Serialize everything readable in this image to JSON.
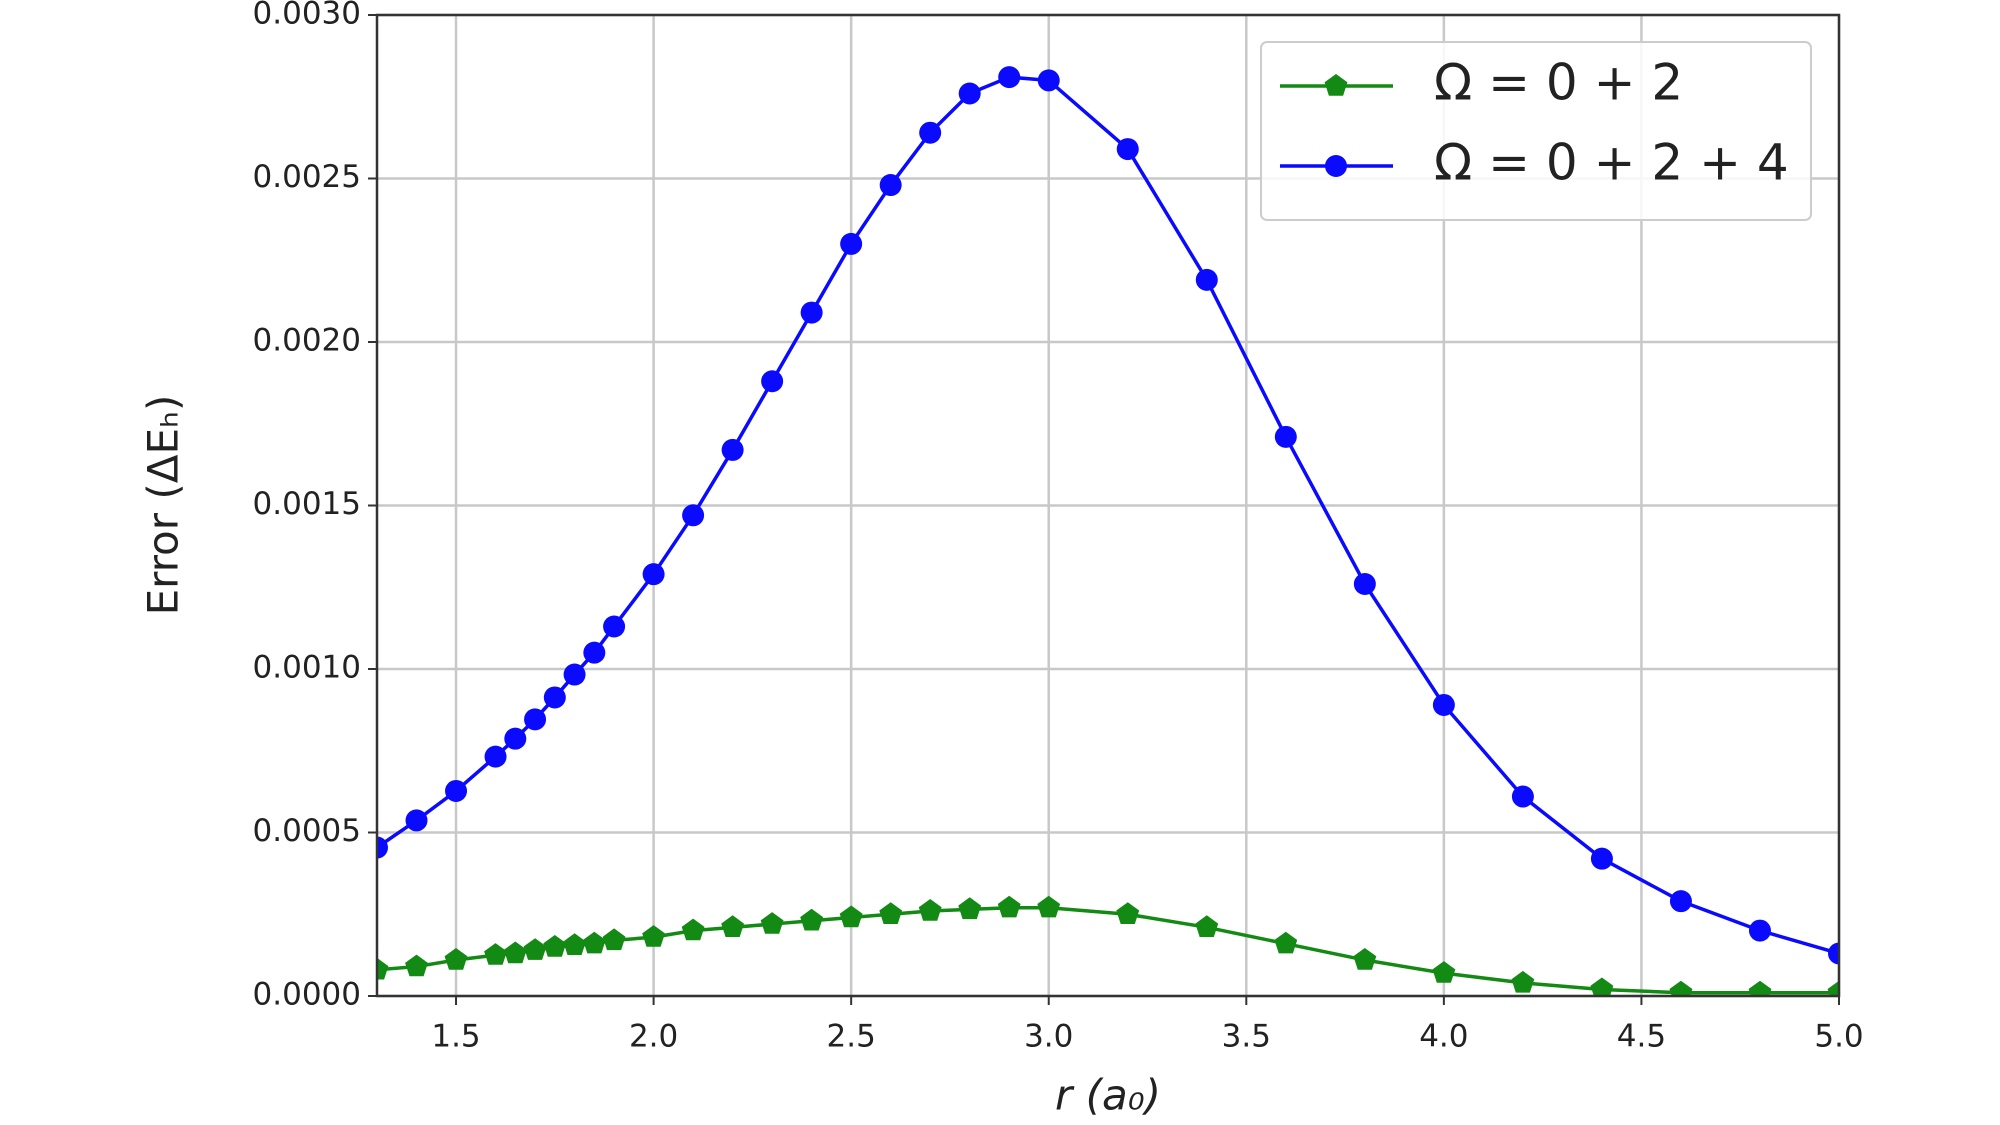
{
  "chart_data": {
    "type": "line",
    "xlabel": "r (a₀)",
    "ylabel": "Error (ΔEₕ)",
    "x": [
      1.3,
      1.4,
      1.5,
      1.6,
      1.65,
      1.7,
      1.75,
      1.8,
      1.85,
      1.9,
      2.0,
      2.1,
      2.2,
      2.3,
      2.4,
      2.5,
      2.6,
      2.7,
      2.8,
      2.9,
      3.0,
      3.2,
      3.4,
      3.6,
      3.8,
      4.0,
      4.2,
      4.4,
      4.6,
      4.8,
      5.0
    ],
    "series": [
      {
        "name": "Ω = 0 + 2",
        "color": "#138a13",
        "marker": "pentagon",
        "values": [
          8e-05,
          9e-05,
          0.00011,
          0.000125,
          0.00013,
          0.00014,
          0.00015,
          0.000155,
          0.00016,
          0.00017,
          0.00018,
          0.0002,
          0.00021,
          0.00022,
          0.00023,
          0.00024,
          0.00025,
          0.00026,
          0.000265,
          0.00027,
          0.00027,
          0.00025,
          0.00021,
          0.00016,
          0.00011,
          7e-05,
          4e-05,
          2e-05,
          1e-05,
          1e-05,
          1e-05
        ]
      },
      {
        "name": "Ω = 0 + 2 + 4",
        "color": "#0a0aff",
        "marker": "circle",
        "values": [
          0.000454,
          0.000537,
          0.000627,
          0.000732,
          0.000787,
          0.000846,
          0.000913,
          0.000983,
          0.00105,
          0.00113,
          0.00129,
          0.00147,
          0.00167,
          0.00188,
          0.00209,
          0.0023,
          0.00248,
          0.00264,
          0.00276,
          0.00281,
          0.0028,
          0.00259,
          0.00219,
          0.00171,
          0.00126,
          0.00089,
          0.00061,
          0.00042,
          0.00029,
          0.0002,
          0.00013
        ]
      }
    ],
    "xlim": [
      1.3,
      5.0
    ],
    "ylim": [
      0,
      0.003
    ],
    "xticks": [
      {
        "value": 1.5,
        "label": "1.5"
      },
      {
        "value": 2,
        "label": "2.0"
      },
      {
        "value": 2.5,
        "label": "2.5"
      },
      {
        "value": 3,
        "label": "3.0"
      },
      {
        "value": 3.5,
        "label": "3.5"
      },
      {
        "value": 4,
        "label": "4.0"
      },
      {
        "value": 4.5,
        "label": "4.5"
      },
      {
        "value": 5,
        "label": "5.0"
      }
    ],
    "yticks": [
      {
        "value": 0,
        "label": "0.0000"
      },
      {
        "value": 0.0005,
        "label": "0.0005"
      },
      {
        "value": 0.001,
        "label": "0.0010"
      },
      {
        "value": 0.0015,
        "label": "0.0015"
      },
      {
        "value": 0.002,
        "label": "0.0020"
      },
      {
        "value": 0.0025,
        "label": "0.0025"
      },
      {
        "value": 0.003,
        "label": "0.0030"
      }
    ],
    "grid": true,
    "legend": "upper right"
  }
}
